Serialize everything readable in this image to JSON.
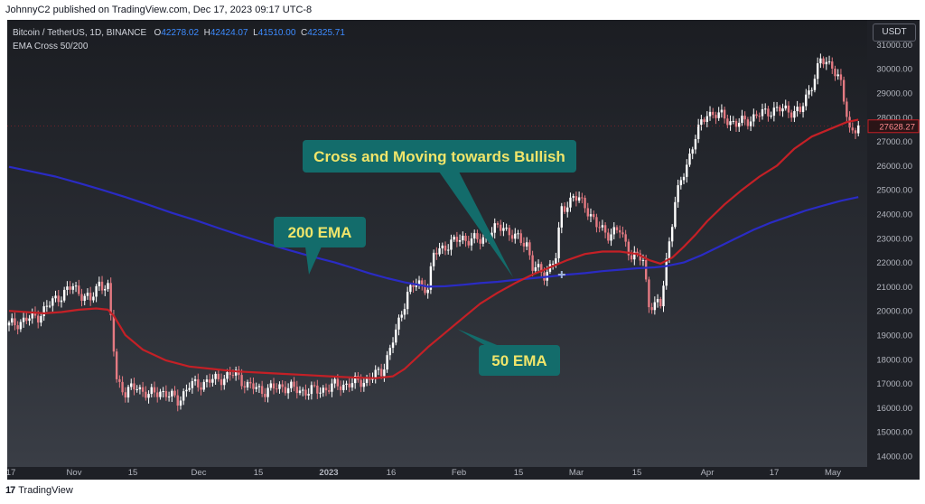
{
  "header": {
    "publisher": "JohnnyC2 published on TradingView.com, Dec 17, 2023 09:17 UTC-8"
  },
  "legend": {
    "symbol": "Bitcoin / TetherUS, 1D, BINANCE",
    "o_label": "O",
    "o_value": "42278.02",
    "h_label": "H",
    "h_value": "42424.07",
    "l_label": "L",
    "l_value": "41510.00",
    "c_label": "C",
    "c_value": "42325.71",
    "indicator": "EMA Cross 50/200"
  },
  "currency_label": "USDT",
  "footer": {
    "logo": "17",
    "brand": "TradingView"
  },
  "colors": {
    "ema200": "#2a2bc4",
    "ema50": "#c42026",
    "up": "#ffffff",
    "down": "#e57a82",
    "callout_bg": "#136c6b",
    "callout_text": "#f0e56a",
    "price_tag": "#c42026"
  },
  "chart_data": {
    "type": "candlestick",
    "title": "",
    "y_range": [
      14000,
      31500
    ],
    "y_ticks": [
      "31000.00",
      "30000.00",
      "29000.00",
      "28000.00",
      "27000.00",
      "26000.00",
      "25000.00",
      "24000.00",
      "23000.00",
      "22000.00",
      "21000.00",
      "20000.00",
      "19000.00",
      "18000.00",
      "17000.00",
      "16000.00",
      "15000.00",
      "14000.00"
    ],
    "x_ticks": [
      "17",
      "Nov",
      "15",
      "Dec",
      "15",
      "2023",
      "16",
      "Feb",
      "15",
      "Mar",
      "15",
      "Apr",
      "17",
      "May"
    ],
    "last_price": "27628.27",
    "series": [
      {
        "name": "200 EMA",
        "points": [
          [
            0,
            25950
          ],
          [
            8,
            25750
          ],
          [
            16,
            25550
          ],
          [
            24,
            25280
          ],
          [
            32,
            25000
          ],
          [
            40,
            24700
          ],
          [
            48,
            24380
          ],
          [
            56,
            24050
          ],
          [
            64,
            23750
          ],
          [
            72,
            23420
          ],
          [
            80,
            23100
          ],
          [
            88,
            22800
          ],
          [
            96,
            22520
          ],
          [
            104,
            22250
          ],
          [
            112,
            22000
          ],
          [
            118,
            21780
          ],
          [
            124,
            21550
          ],
          [
            130,
            21350
          ],
          [
            136,
            21180
          ],
          [
            142,
            21050
          ],
          [
            144,
            21000
          ],
          [
            150,
            21020
          ],
          [
            156,
            21080
          ],
          [
            162,
            21150
          ],
          [
            168,
            21200
          ],
          [
            174,
            21280
          ],
          [
            180,
            21350
          ],
          [
            186,
            21420
          ],
          [
            192,
            21500
          ],
          [
            198,
            21560
          ],
          [
            204,
            21640
          ],
          [
            210,
            21700
          ],
          [
            216,
            21760
          ],
          [
            222,
            21800
          ],
          [
            226,
            21850
          ],
          [
            232,
            22000
          ],
          [
            238,
            22300
          ],
          [
            244,
            22650
          ],
          [
            250,
            23000
          ],
          [
            256,
            23350
          ],
          [
            262,
            23650
          ],
          [
            268,
            23900
          ],
          [
            274,
            24150
          ],
          [
            280,
            24350
          ],
          [
            286,
            24550
          ],
          [
            292,
            24700
          ]
        ]
      },
      {
        "name": "50 EMA",
        "points": [
          [
            0,
            20000
          ],
          [
            6,
            19950
          ],
          [
            12,
            19900
          ],
          [
            18,
            19950
          ],
          [
            24,
            20050
          ],
          [
            30,
            20100
          ],
          [
            34,
            20050
          ],
          [
            36,
            19800
          ],
          [
            40,
            19000
          ],
          [
            46,
            18400
          ],
          [
            54,
            17950
          ],
          [
            62,
            17700
          ],
          [
            70,
            17600
          ],
          [
            78,
            17500
          ],
          [
            86,
            17450
          ],
          [
            94,
            17400
          ],
          [
            102,
            17350
          ],
          [
            110,
            17300
          ],
          [
            118,
            17250
          ],
          [
            126,
            17220
          ],
          [
            132,
            17300
          ],
          [
            136,
            17600
          ],
          [
            140,
            18050
          ],
          [
            144,
            18500
          ],
          [
            150,
            19100
          ],
          [
            156,
            19700
          ],
          [
            162,
            20300
          ],
          [
            168,
            20750
          ],
          [
            174,
            21150
          ],
          [
            180,
            21500
          ],
          [
            186,
            21800
          ],
          [
            192,
            22100
          ],
          [
            198,
            22350
          ],
          [
            204,
            22450
          ],
          [
            210,
            22450
          ],
          [
            216,
            22350
          ],
          [
            220,
            22100
          ],
          [
            224,
            21950
          ],
          [
            228,
            22200
          ],
          [
            232,
            22650
          ],
          [
            236,
            23150
          ],
          [
            240,
            23700
          ],
          [
            246,
            24400
          ],
          [
            252,
            25000
          ],
          [
            258,
            25550
          ],
          [
            264,
            26000
          ],
          [
            270,
            26700
          ],
          [
            276,
            27200
          ],
          [
            282,
            27500
          ],
          [
            288,
            27800
          ],
          [
            292,
            27900
          ]
        ]
      }
    ],
    "candles_ohlc_sample_note": "",
    "annotations": [
      {
        "text": "Cross and Moving towards Bullish"
      },
      {
        "text": "200 EMA"
      },
      {
        "text": "50 EMA"
      }
    ]
  }
}
